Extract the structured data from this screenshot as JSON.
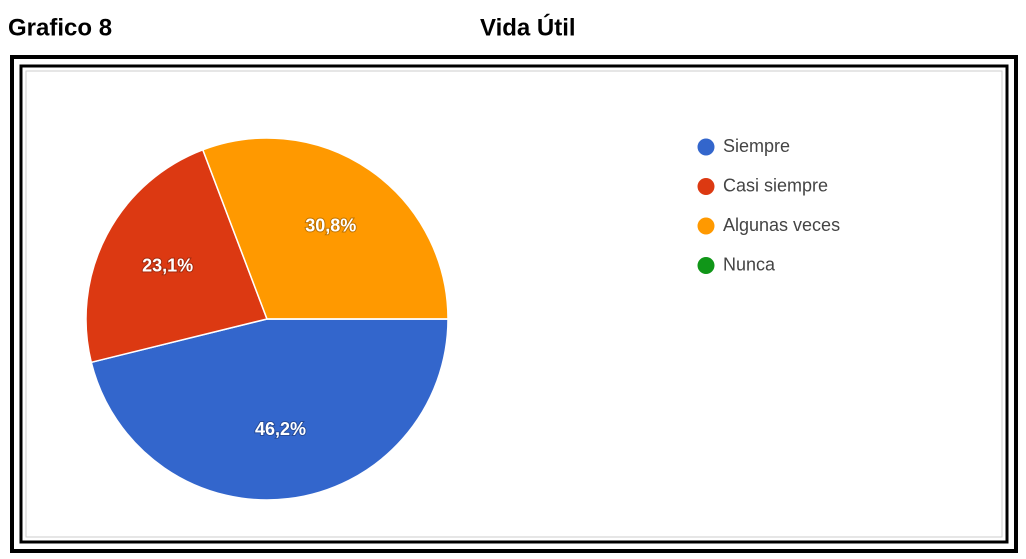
{
  "chart_data": {
    "type": "pie",
    "figure_label": "Grafico 8",
    "title": "Vida Útil",
    "categories": [
      "Siempre",
      "Casi siempre",
      "Algunas veces",
      "Nunca"
    ],
    "values": [
      46.2,
      23.1,
      30.8,
      0
    ],
    "value_labels": [
      "46,2%",
      "23,1%",
      "30,8%",
      null
    ],
    "colors": [
      "#3366cc",
      "#dc3912",
      "#ff9900",
      "#109618"
    ],
    "legend": "right"
  }
}
